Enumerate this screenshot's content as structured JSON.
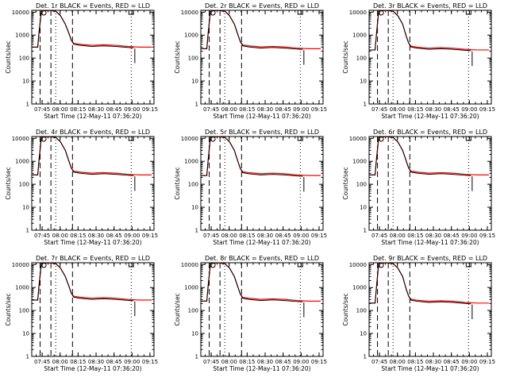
{
  "colors": {
    "background": "#ffffff",
    "events": "#000000",
    "lld": "#ff0000",
    "axes": "#000000"
  },
  "chart_data": {
    "type": "line",
    "layout": "3x3 grid",
    "common": {
      "xlabel": "Start Time (12-May-11 07:36:20)",
      "ylabel": "Counts/sec",
      "x_tick_labels": [
        "07:45",
        "08:00",
        "08:15",
        "08:30",
        "08:45",
        "09:00",
        "09:15"
      ],
      "x_tick_minutes": [
        8.67,
        23.67,
        38.67,
        53.67,
        68.67,
        83.67,
        98.67
      ],
      "y_tick_labels": [
        "1",
        "10",
        "100",
        "1000",
        "10000"
      ],
      "xlim": [
        0,
        102
      ],
      "ylim": [
        1,
        12000
      ],
      "yscale": "log",
      "x_units": "minutes after 07:36:20",
      "dashed_markers": [
        7,
        16,
        34
      ],
      "dotted_markers": [
        20,
        83
      ],
      "series_names": [
        "Events",
        "LLD"
      ],
      "lld_curve": [
        [
          0,
          300
        ],
        [
          5,
          300
        ],
        [
          6,
          1200
        ],
        [
          8,
          11000
        ],
        [
          14,
          12000
        ],
        [
          20,
          11000
        ],
        [
          24,
          7000
        ],
        [
          28,
          3000
        ],
        [
          31,
          1200
        ],
        [
          33,
          600
        ],
        [
          35,
          440
        ],
        [
          40,
          400
        ],
        [
          50,
          360
        ],
        [
          60,
          380
        ],
        [
          70,
          360
        ],
        [
          80,
          320
        ],
        [
          90,
          300
        ],
        [
          100,
          300
        ]
      ],
      "events_curve": [
        [
          0,
          300
        ],
        [
          5,
          300
        ],
        [
          6,
          1200
        ],
        [
          8,
          11000
        ],
        [
          14,
          12000
        ],
        [
          20,
          11000
        ],
        [
          24,
          7000
        ],
        [
          28,
          3000
        ],
        [
          31,
          1200
        ],
        [
          33,
          600
        ],
        [
          35,
          400
        ],
        [
          40,
          360
        ],
        [
          50,
          320
        ],
        [
          60,
          340
        ],
        [
          70,
          320
        ],
        [
          80,
          290
        ],
        [
          85,
          280
        ]
      ],
      "dropout": {
        "x": 86,
        "y_start": 260,
        "y_end": 60
      }
    },
    "panels": [
      {
        "title": "Det. 1r BLACK = Events, RED = LLD",
        "scale": 1.0
      },
      {
        "title": "Det. 2r BLACK = Events, RED = LLD",
        "scale": 0.85
      },
      {
        "title": "Det. 3r BLACK = Events, RED = LLD",
        "scale": 0.75
      },
      {
        "title": "Det. 4r BLACK = Events, RED = LLD",
        "scale": 0.85
      },
      {
        "title": "Det. 5r BLACK = Events, RED = LLD",
        "scale": 0.8
      },
      {
        "title": "Det. 6r BLACK = Events, RED = LLD",
        "scale": 0.85
      },
      {
        "title": "Det. 7r BLACK = Events, RED = LLD",
        "scale": 0.95
      },
      {
        "title": "Det. 8r BLACK = Events, RED = LLD",
        "scale": 0.85
      },
      {
        "title": "Det. 9r BLACK = Events, RED = LLD",
        "scale": 0.7
      }
    ]
  }
}
